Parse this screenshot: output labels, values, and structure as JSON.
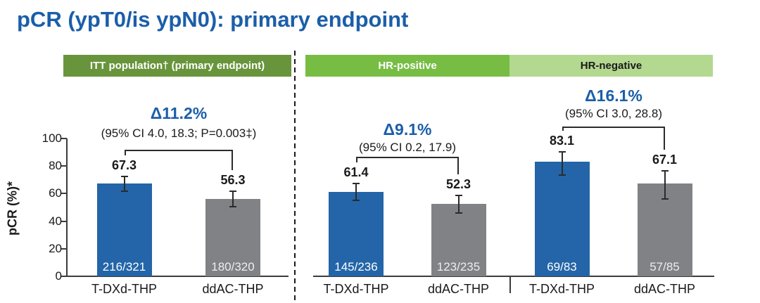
{
  "title": "pCR (ypT0/is ypN0): primary endpoint",
  "colors": {
    "title_blue": "#1b5ea9",
    "delta_blue": "#1b5ea9",
    "bar_blue": "#2365a8",
    "bar_gray": "#808285",
    "header_itt_green": "#68953c",
    "header_hrpos_green": "#77bd44",
    "header_hrneg_green": "#b3d88f",
    "axis": "#3c3c3c",
    "count_on_blue": "#ffffff",
    "count_on_gray": "#ededed"
  },
  "chart_data": {
    "type": "bar",
    "ylabel": "pCR (%)*",
    "ylim": [
      0,
      100
    ],
    "yticks": [
      0,
      20,
      40,
      60,
      80,
      100
    ],
    "grid": false,
    "arms": [
      "T-DXd-THP",
      "ddAC-THP"
    ],
    "groups": [
      {
        "header": "ITT population† (primary endpoint)",
        "delta": "Δ11.2%",
        "ci": "(95% CI 4.0, 18.3; P=0.003‡)",
        "bars": [
          {
            "arm": "T-DXd-THP",
            "value": 67.3,
            "count": "216/321",
            "err_low": 61.9,
            "err_high": 72.4
          },
          {
            "arm": "ddAC-THP",
            "value": 56.3,
            "count": "180/320",
            "err_low": 50.6,
            "err_high": 61.8
          }
        ]
      },
      {
        "header": "HR-positive",
        "delta": "Δ9.1%",
        "ci": "(95% CI 0.2, 17.9)",
        "bars": [
          {
            "arm": "T-DXd-THP",
            "value": 61.4,
            "count": "145/236",
            "err_low": 54.9,
            "err_high": 67.6
          },
          {
            "arm": "ddAC-THP",
            "value": 52.3,
            "count": "123/235",
            "err_low": 45.7,
            "err_high": 58.9
          }
        ]
      },
      {
        "header": "HR-negative",
        "delta": "Δ16.1%",
        "ci": "(95% CI 3.0, 28.8)",
        "bars": [
          {
            "arm": "T-DXd-THP",
            "value": 83.1,
            "count": "69/83",
            "err_low": 73.3,
            "err_high": 90.5
          },
          {
            "arm": "ddAC-THP",
            "value": 67.1,
            "count": "57/85",
            "err_low": 56.0,
            "err_high": 76.7
          }
        ]
      }
    ]
  }
}
